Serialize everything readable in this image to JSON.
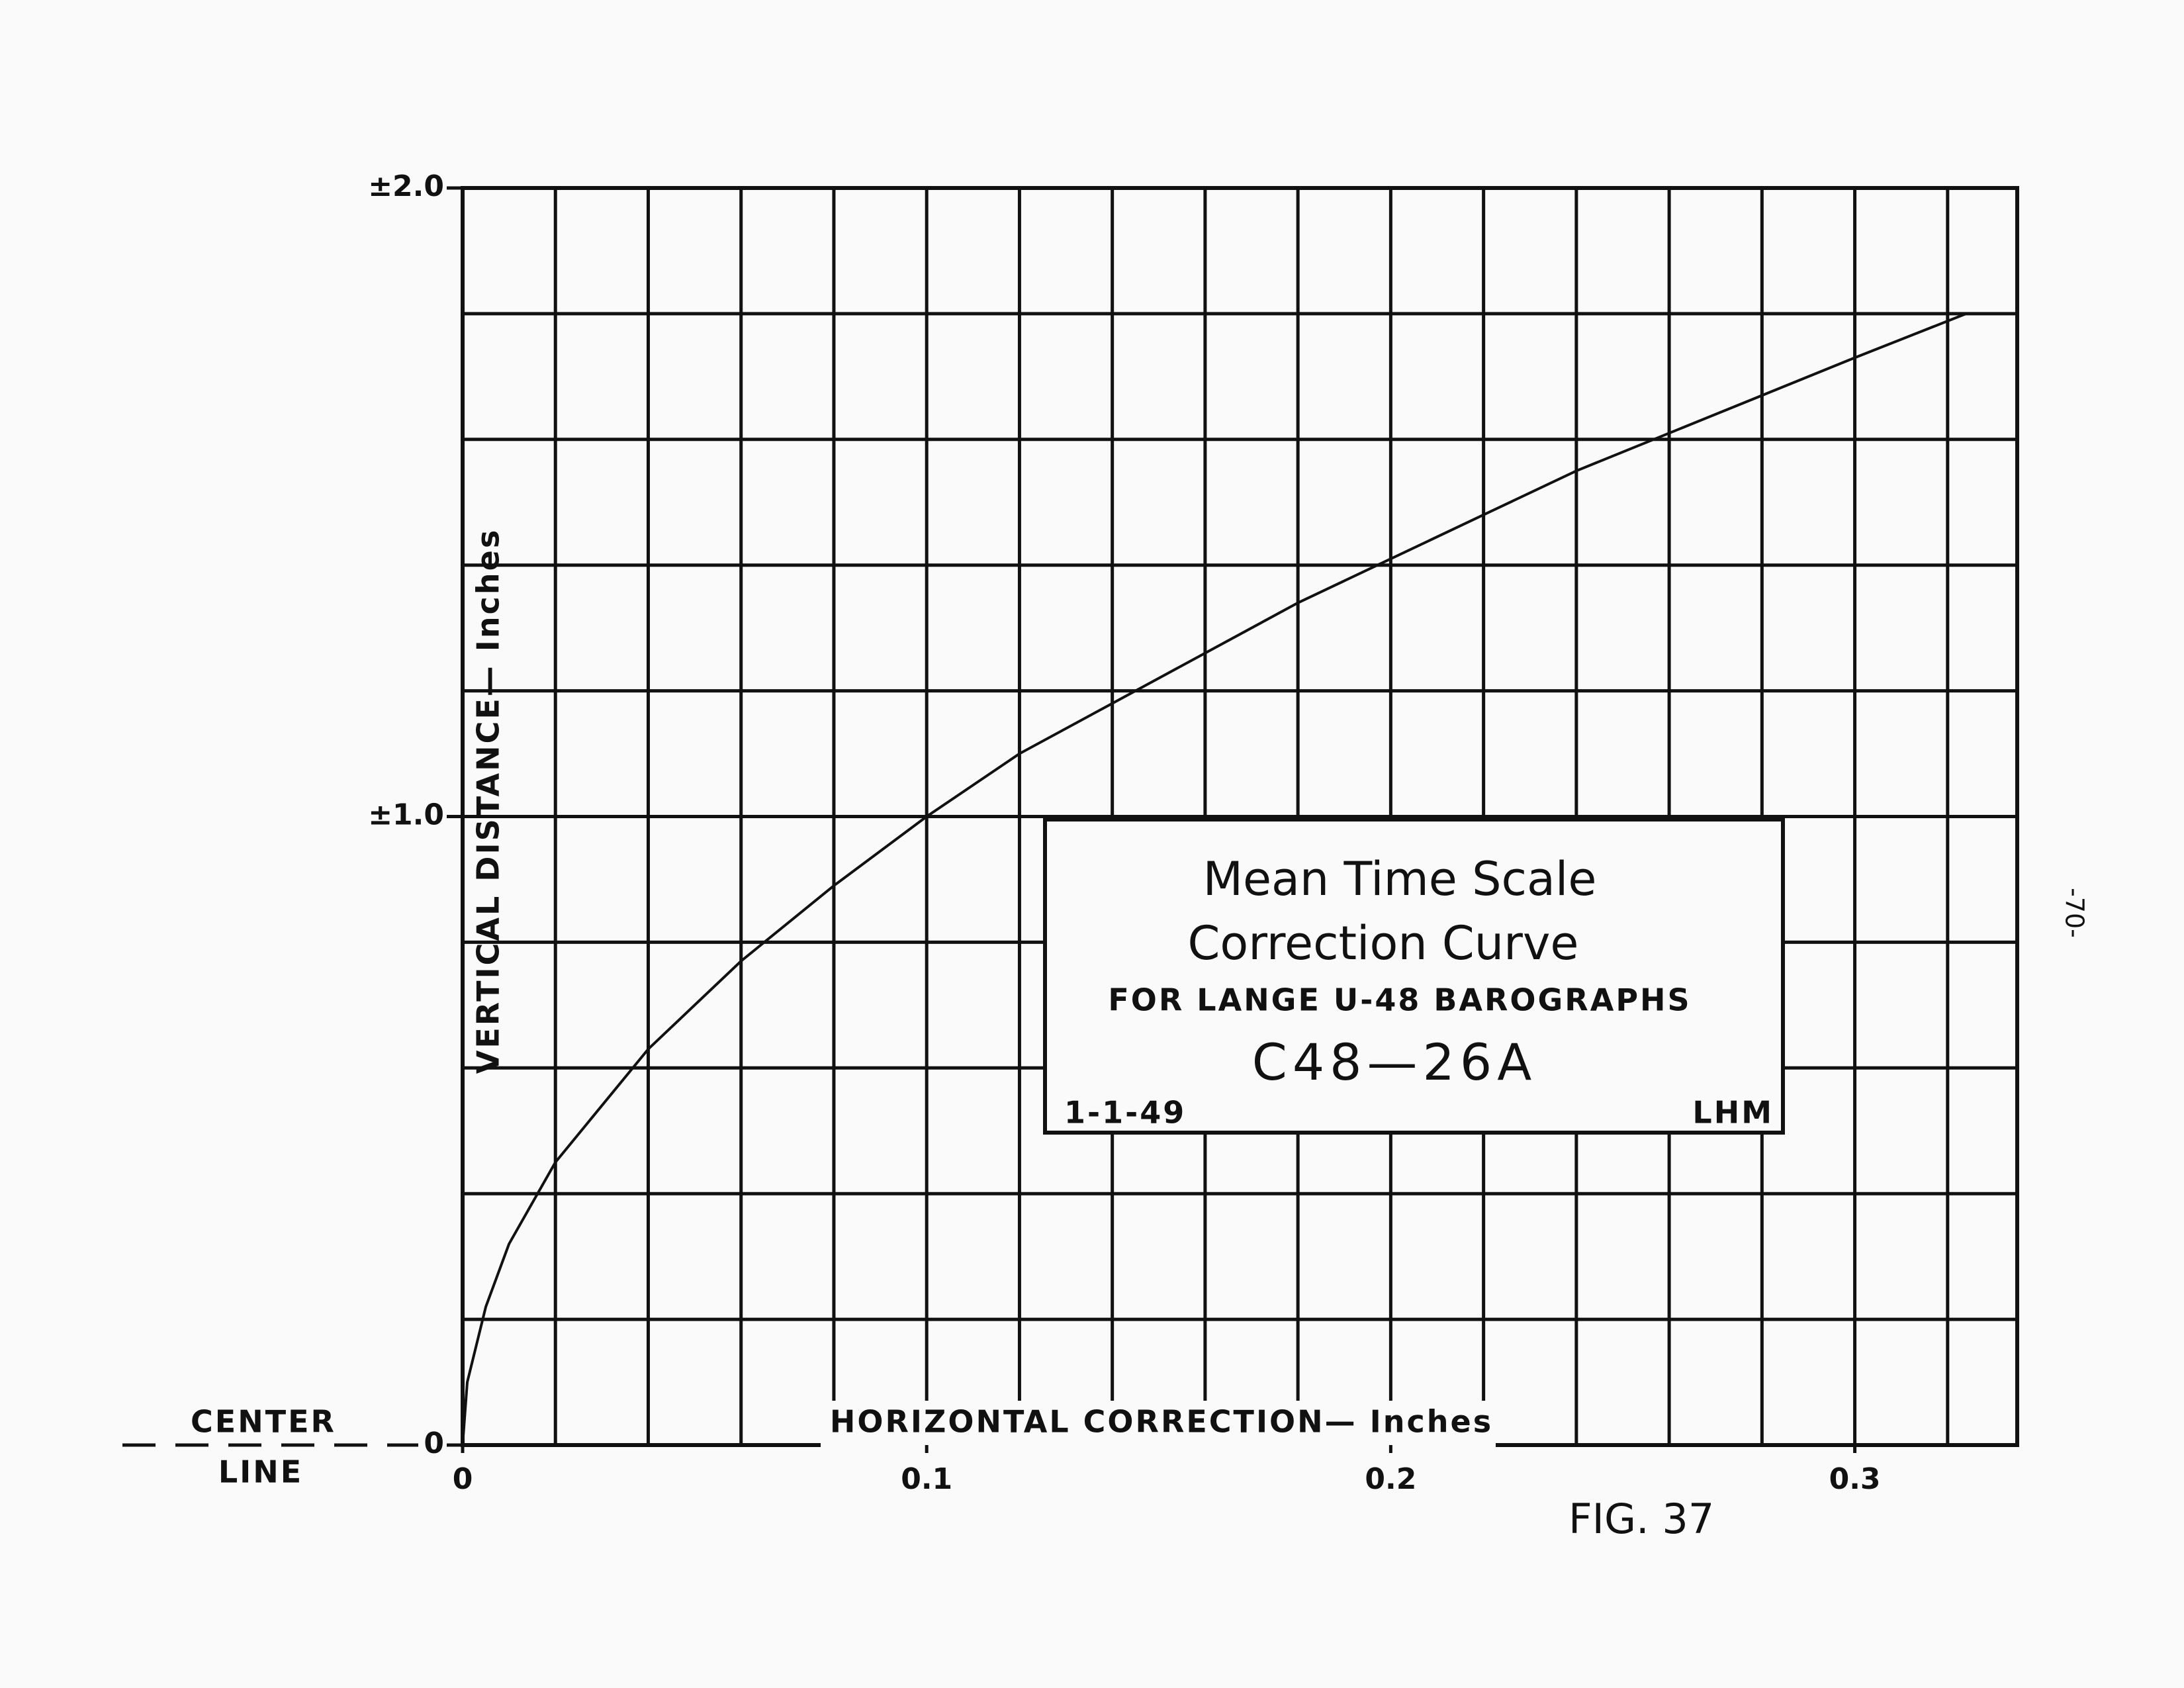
{
  "chart_data": {
    "type": "line",
    "x_label": "HORIZONTAL  CORRECTION— Inches",
    "y_label": "VERTICAL  DISTANCE— Inches",
    "center_line": [
      "CENTER",
      "LINE"
    ],
    "box": {
      "title": [
        "Mean Time Scale",
        "Correction Curve"
      ],
      "subtitle": "FOR LANGE U-48 BAROGRAPHS",
      "code": "C48—26A",
      "date": "1-1-49",
      "initials": "LHM"
    },
    "figure_label": "FIG. 37",
    "page_number": "-70-",
    "xlim": [
      0,
      0.335
    ],
    "ylim": [
      0,
      2.0
    ],
    "xticks": [
      0,
      0.1,
      0.2,
      0.3
    ],
    "yticks": [
      0,
      {
        "value": 1,
        "label": "±1.0"
      },
      {
        "value": 2,
        "label": "±2.0"
      }
    ],
    "x_grid": [
      0.02,
      0.04,
      0.06,
      0.08,
      0.1,
      0.12,
      0.14,
      0.16,
      0.18,
      0.2,
      0.22,
      0.24,
      0.26,
      0.28,
      0.3,
      0.32
    ],
    "y_grid": [
      0.2,
      0.4,
      0.6,
      0.8,
      1.0,
      1.2,
      1.4,
      1.6,
      1.8
    ],
    "grid": true,
    "color": "#111111",
    "x": [
      0,
      0.001,
      0.005,
      0.01,
      0.02,
      0.04,
      0.06,
      0.08,
      0.1,
      0.12,
      0.14,
      0.16,
      0.18,
      0.2,
      0.22,
      0.24,
      0.26,
      0.28,
      0.3,
      0.324
    ],
    "values": [
      0,
      0.1,
      0.22,
      0.32,
      0.45,
      0.63,
      0.77,
      0.89,
      1.0,
      1.1,
      1.18,
      1.26,
      1.34,
      1.41,
      1.48,
      1.55,
      1.61,
      1.67,
      1.73,
      1.8
    ]
  }
}
